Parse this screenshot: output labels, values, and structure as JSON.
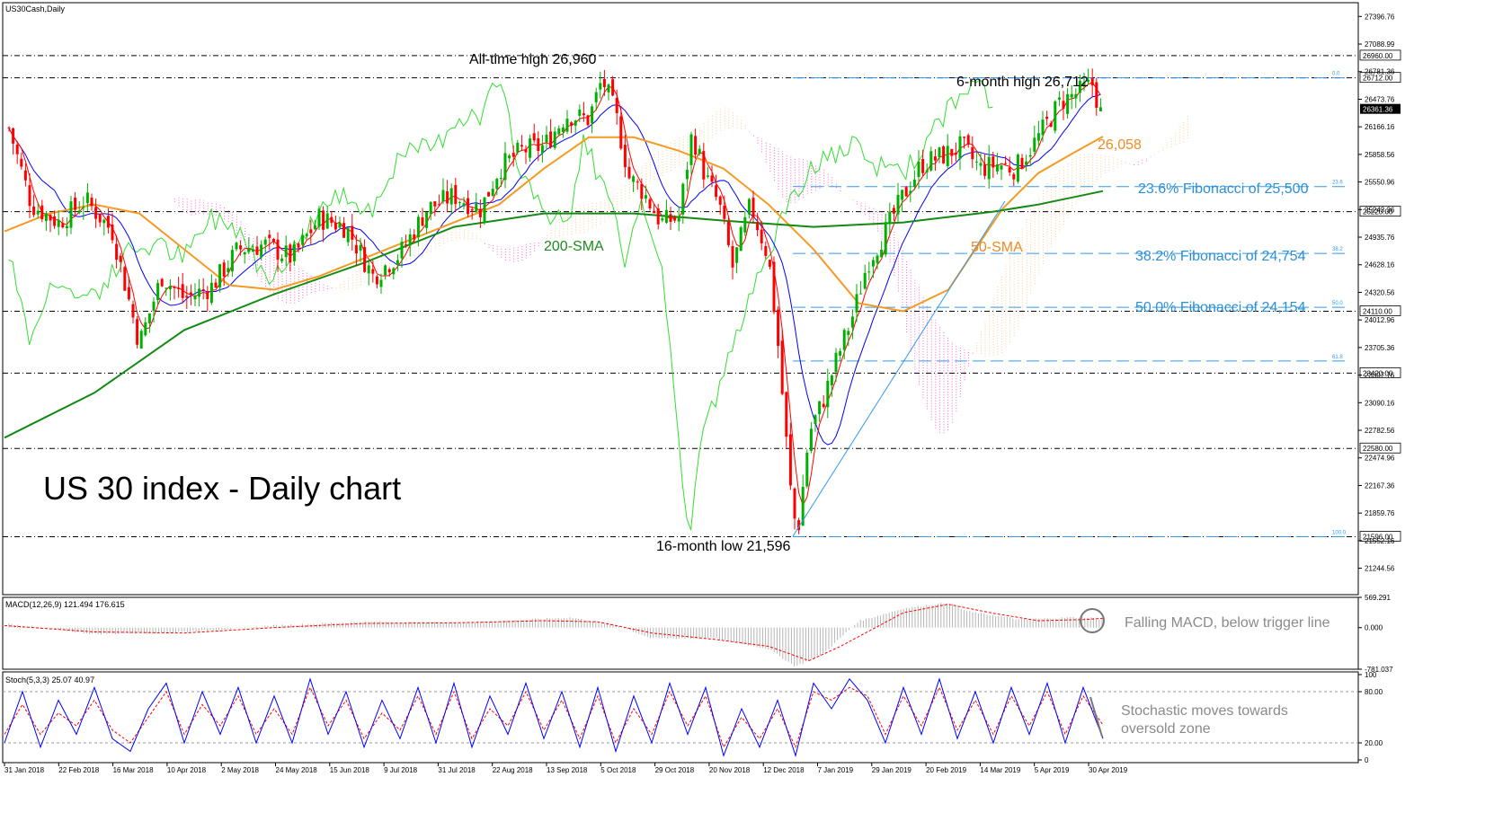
{
  "chart_title": "US30Cash,Daily",
  "headline": "US 30 index - Daily chart",
  "colors": {
    "up_candle": "#00b000",
    "down_candle": "#ff0000",
    "sma50": "#f59a23",
    "sma200": "#138a13",
    "tenkan": "#ff0000",
    "kijun": "#0000ff",
    "chikou": "#33dd33",
    "cloud_bull": "#ffcc99",
    "cloud_bear": "#ff66cc",
    "fib": "#3399ee",
    "annotation_orange": "#f08a24",
    "annotation_green": "#1f8b1f",
    "annotation_blue": "#2b8fd6",
    "annotation_gray": "#8a8a8a",
    "macd_hist": "#b5b5b5",
    "macd_signal": "#ff0000",
    "stoch_main": "#0000ff",
    "stoch_signal": "#ff0000"
  },
  "chart_data": [
    {
      "type": "line",
      "subtype": "candlestick",
      "title": "US30Cash,Daily",
      "ylim": [
        20950,
        27550
      ],
      "y_ticks": [
        "27396.76",
        "27088.99",
        "26781.36",
        "26473.76",
        "26166.16",
        "25858.56",
        "25550.96",
        "25243.36",
        "24935.76",
        "24628.16",
        "24320.56",
        "24012.96",
        "23705.36",
        "23397.76",
        "23090.16",
        "22782.56",
        "22474.96",
        "22167.36",
        "21859.76",
        "21552.16",
        "21244.56"
      ],
      "x_ticks": [
        "31 Jan 2018",
        "22 Feb 2018",
        "16 Mar 2018",
        "10 Apr 2018",
        "2 May 2018",
        "24 May 2018",
        "15 Jun 2018",
        "9 Jul 2018",
        "31 Jul 2018",
        "22 Aug 2018",
        "13 Sep 2018",
        "5 Oct 2018",
        "29 Oct 2018",
        "20 Nov 2018",
        "12 Dec 2018",
        "7 Jan 2019",
        "29 Jan 2019",
        "20 Feb 2019",
        "14 Mar 2019",
        "5 Apr 2019",
        "30 Apr 2019"
      ],
      "key_levels": [
        {
          "value": 26960,
          "label": "26960.00"
        },
        {
          "value": 26712,
          "label": "26712.00"
        },
        {
          "value": 25220,
          "label": "25220.00"
        },
        {
          "value": 24110,
          "label": "24110.00"
        },
        {
          "value": 23420,
          "label": "23420.00"
        },
        {
          "value": 22580,
          "label": "22580.00"
        },
        {
          "value": 21596,
          "label": "21596.00"
        }
      ],
      "current_price": {
        "value": 26361.36,
        "label": "26361.36"
      },
      "fibonacci": [
        {
          "level": "0.0",
          "value": 26712
        },
        {
          "level": "23.6",
          "value": 25500
        },
        {
          "level": "38.2",
          "value": 24754
        },
        {
          "level": "50.0",
          "value": 24154
        },
        {
          "level": "61.8",
          "value": 23555
        },
        {
          "level": "100.0",
          "value": 21596
        }
      ],
      "series": [
        {
          "name": "200-SMA",
          "points": [
            [
              0,
              22700
            ],
            [
              100,
              23200
            ],
            [
              200,
              23900
            ],
            [
              300,
              24300
            ],
            [
              400,
              24650
            ],
            [
              500,
              25050
            ],
            [
              600,
              25200
            ],
            [
              700,
              25200
            ],
            [
              800,
              25120
            ],
            [
              900,
              25050
            ],
            [
              1000,
              25100
            ],
            [
              1100,
              25220
            ],
            [
              1150,
              25300
            ],
            [
              1222,
              25450
            ]
          ]
        },
        {
          "name": "50-SMA",
          "points": [
            [
              0,
              25000
            ],
            [
              50,
              25200
            ],
            [
              100,
              25300
            ],
            [
              150,
              25200
            ],
            [
              200,
              24800
            ],
            [
              250,
              24400
            ],
            [
              300,
              24350
            ],
            [
              350,
              24500
            ],
            [
              400,
              24700
            ],
            [
              450,
              24900
            ],
            [
              500,
              25100
            ],
            [
              550,
              25300
            ],
            [
              600,
              25700
            ],
            [
              650,
              26050
            ],
            [
              700,
              26050
            ],
            [
              750,
              25900
            ],
            [
              800,
              25700
            ],
            [
              850,
              25300
            ],
            [
              900,
              24800
            ],
            [
              950,
              24200
            ],
            [
              1000,
              24110
            ],
            [
              1050,
              24350
            ],
            [
              1080,
              24800
            ],
            [
              1110,
              25250
            ],
            [
              1150,
              25650
            ],
            [
              1190,
              25880
            ],
            [
              1222,
              26058
            ]
          ]
        }
      ],
      "ohlc_close_path": [
        [
          5,
          26150
        ],
        [
          30,
          25300
        ],
        [
          60,
          25100
        ],
        [
          90,
          25350
        ],
        [
          120,
          25000
        ],
        [
          150,
          23750
        ],
        [
          175,
          24500
        ],
        [
          200,
          24250
        ],
        [
          230,
          24380
        ],
        [
          260,
          24800
        ],
        [
          290,
          24850
        ],
        [
          320,
          24700
        ],
        [
          350,
          25150
        ],
        [
          380,
          25050
        ],
        [
          410,
          24500
        ],
        [
          440,
          24750
        ],
        [
          470,
          25250
        ],
        [
          500,
          25400
        ],
        [
          530,
          25250
        ],
        [
          550,
          25700
        ],
        [
          575,
          25900
        ],
        [
          600,
          25950
        ],
        [
          625,
          26300
        ],
        [
          650,
          26250
        ],
        [
          665,
          26700
        ],
        [
          680,
          26300
        ],
        [
          695,
          25600
        ],
        [
          710,
          25450
        ],
        [
          730,
          25100
        ],
        [
          750,
          25150
        ],
        [
          765,
          26100
        ],
        [
          780,
          25600
        ],
        [
          795,
          25300
        ],
        [
          810,
          24600
        ],
        [
          830,
          25300
        ],
        [
          850,
          24700
        ],
        [
          860,
          23800
        ],
        [
          875,
          22050
        ],
        [
          882,
          21600
        ],
        [
          895,
          22750
        ],
        [
          910,
          23100
        ],
        [
          925,
          23550
        ],
        [
          945,
          24100
        ],
        [
          960,
          24650
        ],
        [
          980,
          25000
        ],
        [
          1000,
          25400
        ],
        [
          1020,
          25750
        ],
        [
          1045,
          25850
        ],
        [
          1065,
          25950
        ],
        [
          1085,
          25700
        ],
        [
          1105,
          25750
        ],
        [
          1125,
          25700
        ],
        [
          1150,
          26050
        ],
        [
          1175,
          26450
        ],
        [
          1195,
          26550
        ],
        [
          1212,
          26650
        ],
        [
          1218,
          26300
        ],
        [
          1222,
          26361
        ]
      ],
      "annotations": [
        {
          "text": "All-time high 26,960",
          "value": 26960
        },
        {
          "text": "6-month high 26,712",
          "value": 26712
        },
        {
          "text": "26,058",
          "value": 26058
        },
        {
          "text": "23.6% Fibonacci of 25,500",
          "value": 25500
        },
        {
          "text": "38.2% Fibonacci of 24,754",
          "value": 24754
        },
        {
          "text": "50.0% Fibonacci of 24,154",
          "value": 24154
        },
        {
          "text": "200-SMA",
          "value": 25000
        },
        {
          "text": "50-SMA",
          "value": 24950
        },
        {
          "text": "16-month low 21,596",
          "value": 21596
        }
      ]
    },
    {
      "type": "bar",
      "title": "MACD(12,26,9) 121.494 176.615",
      "ylim": [
        -781.037,
        569.291
      ],
      "y_ticks": [
        "569.291",
        "0.000",
        "-781.037"
      ],
      "annotation": "Falling MACD, below trigger line",
      "hist_envelope": [
        [
          0,
          80
        ],
        [
          100,
          -120
        ],
        [
          200,
          -80
        ],
        [
          300,
          40
        ],
        [
          400,
          110
        ],
        [
          500,
          90
        ],
        [
          560,
          130
        ],
        [
          630,
          190
        ],
        [
          680,
          50
        ],
        [
          720,
          -200
        ],
        [
          790,
          -200
        ],
        [
          850,
          -400
        ],
        [
          880,
          -730
        ],
        [
          910,
          -500
        ],
        [
          950,
          120
        ],
        [
          1000,
          360
        ],
        [
          1050,
          470
        ],
        [
          1070,
          310
        ],
        [
          1130,
          150
        ],
        [
          1200,
          200
        ],
        [
          1222,
          150
        ]
      ],
      "signal_path": [
        [
          0,
          40
        ],
        [
          100,
          -80
        ],
        [
          200,
          -100
        ],
        [
          300,
          0
        ],
        [
          400,
          80
        ],
        [
          500,
          90
        ],
        [
          600,
          130
        ],
        [
          660,
          110
        ],
        [
          720,
          -100
        ],
        [
          790,
          -220
        ],
        [
          850,
          -350
        ],
        [
          895,
          -620
        ],
        [
          930,
          -350
        ],
        [
          1000,
          280
        ],
        [
          1050,
          440
        ],
        [
          1100,
          270
        ],
        [
          1150,
          130
        ],
        [
          1200,
          150
        ],
        [
          1222,
          176.615
        ]
      ]
    },
    {
      "type": "line",
      "title": "Stoch(5,3,3) 25.07 40.97",
      "ylim": [
        0,
        100
      ],
      "y_ticks": [
        "100",
        "80.00",
        "20.00",
        "0"
      ],
      "annotation": "Stochastic moves towards oversold zone",
      "main_path": [
        [
          0,
          20
        ],
        [
          20,
          80
        ],
        [
          40,
          15
        ],
        [
          60,
          70
        ],
        [
          80,
          30
        ],
        [
          100,
          85
        ],
        [
          120,
          25
        ],
        [
          140,
          10
        ],
        [
          160,
          60
        ],
        [
          180,
          90
        ],
        [
          200,
          20
        ],
        [
          220,
          80
        ],
        [
          240,
          30
        ],
        [
          260,
          85
        ],
        [
          280,
          20
        ],
        [
          300,
          75
        ],
        [
          320,
          20
        ],
        [
          340,
          95
        ],
        [
          360,
          30
        ],
        [
          380,
          80
        ],
        [
          400,
          15
        ],
        [
          420,
          70
        ],
        [
          440,
          25
        ],
        [
          460,
          85
        ],
        [
          480,
          20
        ],
        [
          500,
          90
        ],
        [
          520,
          15
        ],
        [
          540,
          75
        ],
        [
          560,
          30
        ],
        [
          580,
          90
        ],
        [
          600,
          25
        ],
        [
          620,
          80
        ],
        [
          640,
          15
        ],
        [
          660,
          85
        ],
        [
          680,
          10
        ],
        [
          700,
          75
        ],
        [
          720,
          20
        ],
        [
          740,
          90
        ],
        [
          760,
          30
        ],
        [
          780,
          85
        ],
        [
          800,
          5
        ],
        [
          820,
          60
        ],
        [
          840,
          15
        ],
        [
          860,
          70
        ],
        [
          880,
          5
        ],
        [
          900,
          90
        ],
        [
          920,
          60
        ],
        [
          940,
          95
        ],
        [
          960,
          70
        ],
        [
          980,
          20
        ],
        [
          1000,
          85
        ],
        [
          1020,
          30
        ],
        [
          1040,
          95
        ],
        [
          1060,
          25
        ],
        [
          1080,
          80
        ],
        [
          1100,
          20
        ],
        [
          1120,
          85
        ],
        [
          1140,
          30
        ],
        [
          1160,
          90
        ],
        [
          1180,
          20
        ],
        [
          1200,
          85
        ],
        [
          1222,
          25.07
        ]
      ],
      "signal_path": [
        [
          0,
          30
        ],
        [
          20,
          65
        ],
        [
          40,
          30
        ],
        [
          60,
          55
        ],
        [
          80,
          40
        ],
        [
          100,
          70
        ],
        [
          120,
          35
        ],
        [
          140,
          20
        ],
        [
          160,
          50
        ],
        [
          180,
          80
        ],
        [
          200,
          30
        ],
        [
          220,
          65
        ],
        [
          240,
          40
        ],
        [
          260,
          75
        ],
        [
          280,
          30
        ],
        [
          300,
          60
        ],
        [
          320,
          30
        ],
        [
          340,
          85
        ],
        [
          360,
          40
        ],
        [
          380,
          70
        ],
        [
          400,
          25
        ],
        [
          420,
          55
        ],
        [
          440,
          35
        ],
        [
          460,
          75
        ],
        [
          480,
          30
        ],
        [
          500,
          80
        ],
        [
          520,
          25
        ],
        [
          540,
          60
        ],
        [
          560,
          40
        ],
        [
          580,
          80
        ],
        [
          600,
          35
        ],
        [
          620,
          70
        ],
        [
          640,
          25
        ],
        [
          660,
          75
        ],
        [
          680,
          20
        ],
        [
          700,
          60
        ],
        [
          720,
          30
        ],
        [
          740,
          80
        ],
        [
          760,
          40
        ],
        [
          780,
          75
        ],
        [
          800,
          15
        ],
        [
          820,
          50
        ],
        [
          840,
          25
        ],
        [
          860,
          60
        ],
        [
          880,
          15
        ],
        [
          900,
          80
        ],
        [
          920,
          70
        ],
        [
          940,
          85
        ],
        [
          960,
          75
        ],
        [
          980,
          30
        ],
        [
          1000,
          75
        ],
        [
          1020,
          40
        ],
        [
          1040,
          85
        ],
        [
          1060,
          35
        ],
        [
          1080,
          70
        ],
        [
          1100,
          30
        ],
        [
          1120,
          75
        ],
        [
          1140,
          40
        ],
        [
          1160,
          80
        ],
        [
          1180,
          30
        ],
        [
          1200,
          75
        ],
        [
          1222,
          40.97
        ]
      ]
    }
  ]
}
